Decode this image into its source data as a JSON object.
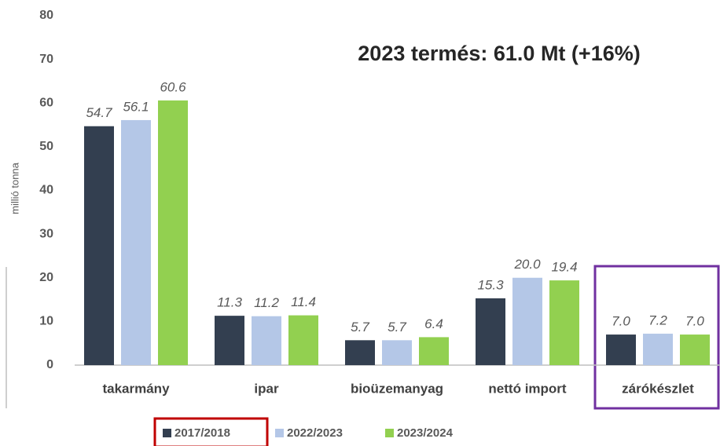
{
  "chart_data": {
    "type": "bar",
    "title": "2023 termés: 61.0 Mt (+16%)",
    "y_label": "millió tonna",
    "categories": [
      "takarmány",
      "ipar",
      "bioüzemanyag",
      "nettó import",
      "zárókészlet"
    ],
    "series": [
      {
        "name": "2017/2018",
        "color": "#333f50",
        "values": [
          54.7,
          11.3,
          5.7,
          15.3,
          7.0
        ],
        "value_labels": [
          "54.7",
          "11.3",
          "5.7",
          "15.3",
          "7.0"
        ]
      },
      {
        "name": "2022/2023",
        "color": "#b4c7e7",
        "values": [
          56.1,
          11.2,
          5.7,
          20.0,
          7.2
        ],
        "value_labels": [
          "56.1",
          "11.2",
          "5.7",
          "20.0",
          "7.2"
        ]
      },
      {
        "name": "2023/2024",
        "color": "#92d050",
        "values": [
          60.6,
          11.4,
          6.4,
          19.4,
          7.0
        ],
        "value_labels": [
          "60.6",
          "11.4",
          "6.4",
          "19.4",
          "7.0"
        ]
      }
    ],
    "ylim": [
      0,
      80
    ],
    "yticks": [
      0,
      10,
      20,
      30,
      40,
      50,
      60,
      70,
      80
    ],
    "grid": false,
    "legend": "bottom"
  }
}
